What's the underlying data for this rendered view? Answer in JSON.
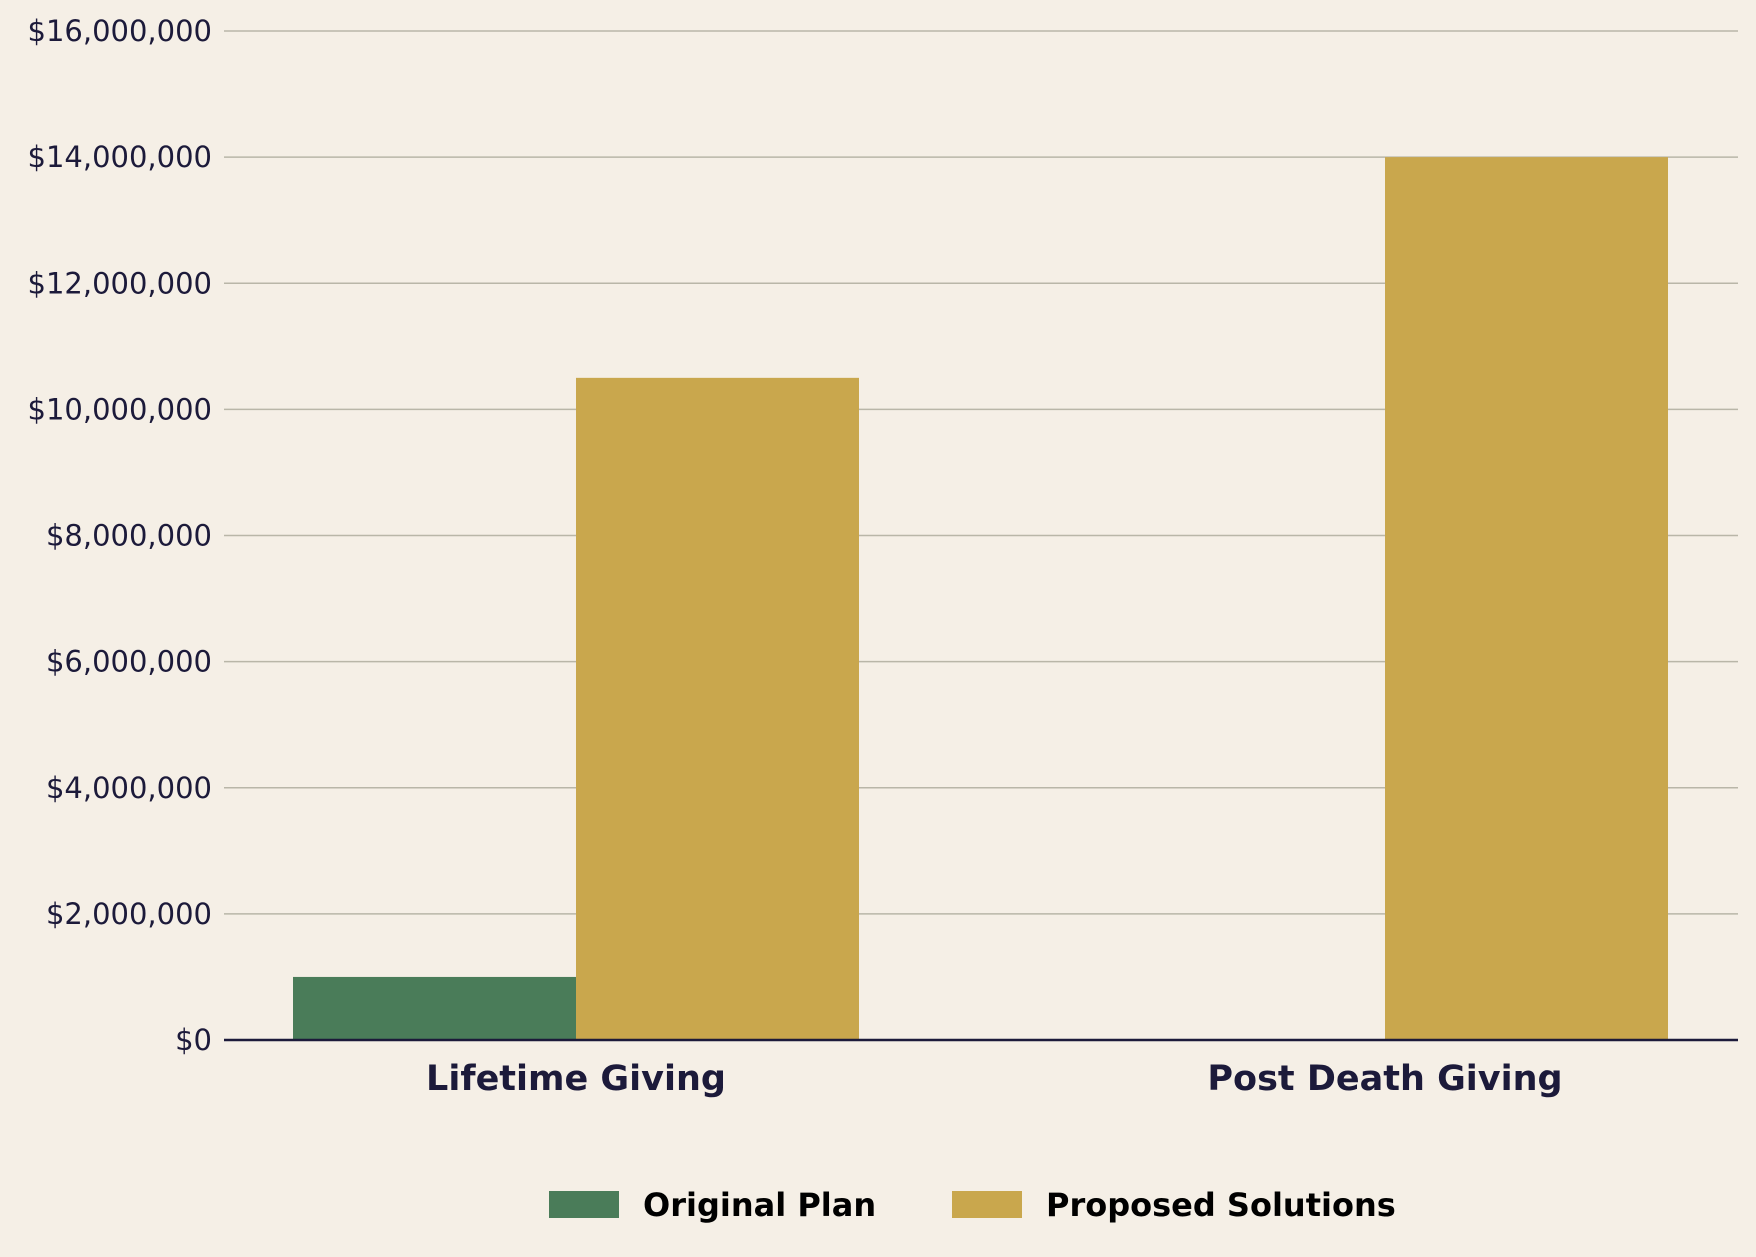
{
  "chart_data": {
    "type": "bar",
    "title": "",
    "xlabel": "",
    "ylabel": "",
    "categories": [
      "Lifetime Giving",
      "Post Death Giving"
    ],
    "series": [
      {
        "name": "Original Plan",
        "values": [
          1000000,
          0
        ],
        "color": "#4a7c59"
      },
      {
        "name": "Proposed Solutions",
        "values": [
          10500000,
          14000000
        ],
        "color": "#c9a74d"
      }
    ],
    "ylim": [
      0,
      16000000
    ],
    "yticks": [
      0,
      2000000,
      4000000,
      6000000,
      8000000,
      10000000,
      12000000,
      14000000,
      16000000
    ],
    "ytick_labels": [
      "$0",
      "$2,000,000",
      "$4,000,000",
      "$6,000,000",
      "$8,000,000",
      "$10,000,000",
      "$12,000,000",
      "$14,000,000",
      "$16,000,000"
    ],
    "grid": "horizontal",
    "legend_position": "bottom-center",
    "background_color": "#f5efe6",
    "text_color": "#1c1a3a"
  }
}
